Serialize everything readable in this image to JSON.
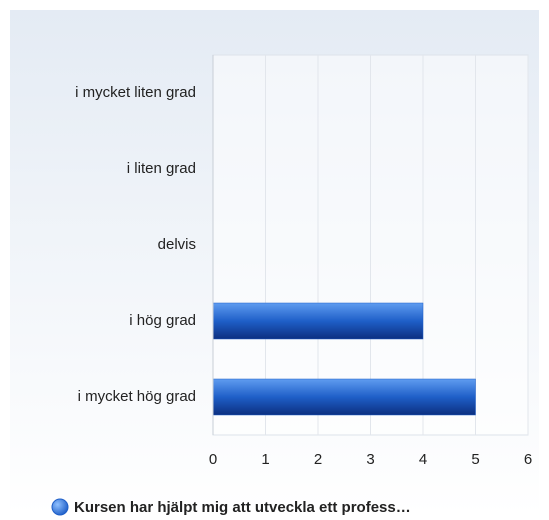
{
  "chart_data": {
    "type": "bar",
    "orientation": "horizontal",
    "categories": [
      "i mycket liten grad",
      "i liten grad",
      "delvis",
      "i hög grad",
      "i mycket hög grad"
    ],
    "series": [
      {
        "name": "Kursen har hjälpt mig att utveckla ett profess…",
        "color": "#1f5fc8",
        "values": [
          0,
          0,
          0,
          4,
          5
        ]
      }
    ],
    "xlim": [
      0,
      6
    ],
    "xticks": [
      0,
      1,
      2,
      3,
      4,
      5,
      6
    ],
    "grid": true,
    "legend": "bottom"
  }
}
